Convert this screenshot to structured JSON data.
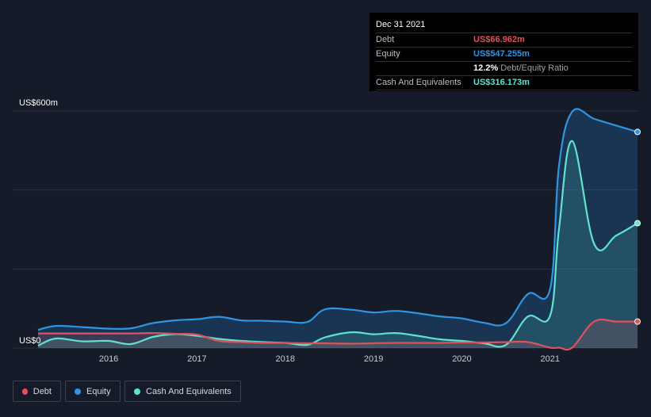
{
  "chart_data": {
    "type": "area",
    "title": "",
    "ylim": [
      0,
      600
    ],
    "y_top_label": "US$600m",
    "y_bottom_label": "US$0",
    "x_ticks": [
      "2016",
      "2017",
      "2018",
      "2019",
      "2020",
      "2021"
    ],
    "x": [
      2015.2,
      2015.4,
      2015.7,
      2016.0,
      2016.25,
      2016.5,
      2016.75,
      2017.0,
      2017.25,
      2017.5,
      2017.75,
      2018.0,
      2018.25,
      2018.45,
      2018.75,
      2019.0,
      2019.25,
      2019.5,
      2019.75,
      2020.0,
      2020.25,
      2020.5,
      2020.75,
      2021.0,
      2021.1,
      2021.25,
      2021.5,
      2021.75,
      2021.99
    ],
    "series": [
      {
        "name": "Debt",
        "color": "#e0525a",
        "values": [
          37,
          37,
          37,
          37,
          37,
          38,
          36,
          34,
          18,
          15,
          13,
          13,
          12,
          12,
          11,
          12,
          13,
          13,
          13,
          14,
          14,
          15,
          15,
          1,
          1,
          1,
          67,
          67,
          67
        ]
      },
      {
        "name": "Equity",
        "color": "#2f95e2",
        "values": [
          46,
          56,
          53,
          49,
          50,
          63,
          70,
          73,
          79,
          70,
          69,
          67,
          66,
          98,
          97,
          90,
          94,
          88,
          80,
          75,
          64,
          63,
          137,
          150,
          460,
          598,
          580,
          563,
          547
        ]
      },
      {
        "name": "Cash And Equivalents",
        "color": "#5fe3cf",
        "values": [
          6,
          24,
          17,
          18,
          10,
          28,
          35,
          31,
          23,
          18,
          15,
          13,
          8,
          27,
          40,
          35,
          38,
          31,
          22,
          18,
          12,
          8,
          80,
          82,
          300,
          524,
          263,
          285,
          316
        ]
      }
    ]
  },
  "tooltip": {
    "date": "Dec 31 2021",
    "rows": [
      {
        "label": "Debt",
        "value": "US$66.962m",
        "color": "#e0525a"
      },
      {
        "label": "Equity",
        "value": "US$547.255m",
        "color": "#2f95e2"
      },
      {
        "label": "",
        "value": "12.2%",
        "sub": "Debt/Equity Ratio",
        "color": "#ffffff"
      },
      {
        "label": "Cash And Equivalents",
        "value": "US$316.173m",
        "color": "#5fe3cf"
      }
    ]
  },
  "legend": [
    {
      "label": "Debt",
      "color": "#e0525a"
    },
    {
      "label": "Equity",
      "color": "#2f95e2"
    },
    {
      "label": "Cash And Equivalents",
      "color": "#5fe3cf"
    }
  ]
}
